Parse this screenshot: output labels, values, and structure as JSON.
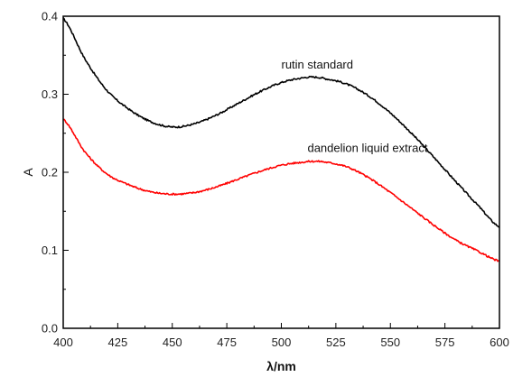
{
  "chart_data": {
    "type": "line",
    "title": "",
    "xlabel": "λ/nm",
    "ylabel": "A",
    "xlim": [
      400,
      600
    ],
    "ylim": [
      0.0,
      0.4
    ],
    "x_ticks": [
      "400",
      "425",
      "450",
      "475",
      "500",
      "525",
      "550",
      "575",
      "600"
    ],
    "y_ticks": [
      "0.0",
      "0.1",
      "0.2",
      "0.3",
      "0.4"
    ],
    "grid": false,
    "series": [
      {
        "name": "rutin standard",
        "color": "#000000",
        "x": [
          400,
          410,
          420,
          430,
          440,
          450,
          460,
          470,
          480,
          490,
          500,
          510,
          515,
          520,
          530,
          540,
          550,
          560,
          570,
          580,
          590,
          600
        ],
        "y": [
          0.397,
          0.345,
          0.305,
          0.281,
          0.265,
          0.258,
          0.262,
          0.273,
          0.288,
          0.303,
          0.315,
          0.321,
          0.322,
          0.32,
          0.313,
          0.298,
          0.276,
          0.249,
          0.219,
          0.188,
          0.158,
          0.13
        ]
      },
      {
        "name": "dandelion liquid extract",
        "color": "#ff0000",
        "x": [
          400,
          410,
          420,
          430,
          440,
          450,
          460,
          470,
          480,
          490,
          500,
          510,
          515,
          520,
          530,
          540,
          550,
          560,
          570,
          580,
          590,
          600
        ],
        "y": [
          0.268,
          0.226,
          0.198,
          0.184,
          0.175,
          0.172,
          0.174,
          0.181,
          0.191,
          0.201,
          0.209,
          0.213,
          0.214,
          0.213,
          0.207,
          0.193,
          0.174,
          0.153,
          0.132,
          0.113,
          0.099,
          0.086
        ]
      }
    ],
    "annotations": [
      {
        "text": "rutin standard",
        "x": 500,
        "y": 0.333
      },
      {
        "text": "dandelion liquid extract",
        "x": 512,
        "y": 0.226
      }
    ]
  }
}
